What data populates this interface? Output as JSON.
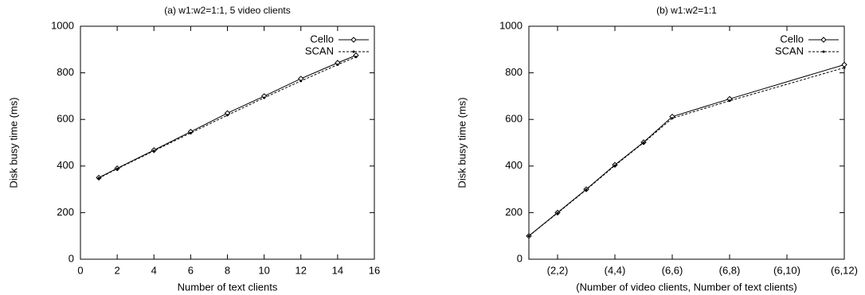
{
  "chart_data": [
    {
      "type": "line",
      "title": "(a) w1:w2=1:1, 5 video clients",
      "xlabel": "Number of text clients",
      "ylabel": "Disk busy time (ms)",
      "x": [
        1,
        2,
        4,
        6,
        8,
        10,
        12,
        14,
        15
      ],
      "series": [
        {
          "name": "Cello",
          "color": "#000000",
          "values": [
            350,
            390,
            468,
            547,
            627,
            700,
            775,
            843,
            875
          ]
        },
        {
          "name": "SCAN",
          "color": "#000000",
          "values": [
            348,
            388,
            465,
            542,
            618,
            693,
            765,
            835,
            868
          ]
        }
      ],
      "xlim": [
        0,
        16
      ],
      "xticks": [
        0,
        2,
        4,
        6,
        8,
        10,
        12,
        14,
        16
      ],
      "ylim": [
        0,
        1000
      ],
      "yticks": [
        0,
        200,
        400,
        600,
        800,
        1000
      ],
      "legend": "top-right"
    },
    {
      "type": "line",
      "title": "(b) w1:w2=1:1",
      "xlabel": "(Number of video clients, Number of text clients)",
      "ylabel": "Disk busy time (ms)",
      "x": [
        1,
        2,
        3,
        4,
        5,
        6,
        8,
        12
      ],
      "series": [
        {
          "name": "Cello",
          "color": "#000000",
          "values": [
            100,
            200,
            300,
            405,
            502,
            612,
            688,
            835
          ]
        },
        {
          "name": "SCAN",
          "color": "#000000",
          "values": [
            100,
            198,
            298,
            402,
            500,
            605,
            680,
            822
          ]
        }
      ],
      "xlim": [
        1,
        12
      ],
      "xticks": [
        {
          "value": 2,
          "label": "(2,2)"
        },
        {
          "value": 4,
          "label": "(4,4)"
        },
        {
          "value": 6,
          "label": "(6,6)"
        },
        {
          "value": 8,
          "label": "(6,8)"
        },
        {
          "value": 10,
          "label": "(6,10)"
        },
        {
          "value": 12,
          "label": "(6,12)"
        }
      ],
      "ylim": [
        0,
        1000
      ],
      "yticks": [
        0,
        200,
        400,
        600,
        800,
        1000
      ],
      "legend": "top-right"
    }
  ]
}
